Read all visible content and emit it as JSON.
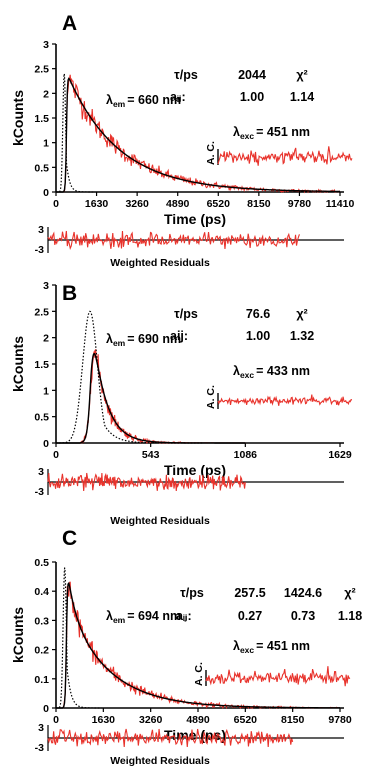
{
  "chart_data": [
    {
      "type": "line",
      "panel": "A",
      "xlabel": "Time (ps)",
      "ylabel": "kCounts",
      "xlim": [
        0,
        11410
      ],
      "ylim": [
        0,
        3
      ],
      "x_ticks": [
        "0",
        "1630",
        "3260",
        "4890",
        "6520",
        "8150",
        "9780",
        "11410"
      ],
      "y_ticks": [
        "0",
        "0.5",
        "1",
        "1.5",
        "2",
        "2.5",
        "3"
      ],
      "emission": {
        "symbol": "λ",
        "sub": "em",
        "value": "= 660 nm"
      },
      "excitation": {
        "symbol": "λ",
        "sub": "exc",
        "value": "= 451 nm"
      },
      "fit_table": {
        "headers": [
          "τ/ps",
          "2044",
          "χ²"
        ],
        "row_label": "aᵢⱼ:",
        "row_values": [
          "1.00",
          "1.14"
        ]
      },
      "ac_label": "A. C.",
      "residuals": {
        "label": "Weighted Residuals",
        "ticks": [
          "3",
          "-3"
        ],
        "data_end_x": 9780
      },
      "series": [
        {
          "kind": "IRF",
          "t0": 330,
          "peak": 2.4,
          "sigma": 55,
          "tail_tau": 120
        },
        {
          "kind": "decay",
          "t0": 420,
          "rise": 60,
          "amplitude": 2.43,
          "taus": [
            2044
          ],
          "weights": [
            1.0
          ],
          "end_x": 11410
        }
      ]
    },
    {
      "type": "line",
      "panel": "B",
      "xlabel": "Time (ps)",
      "ylabel": "kCounts",
      "xlim": [
        0,
        1629
      ],
      "ylim": [
        0,
        3
      ],
      "x_ticks": [
        "0",
        "543",
        "1086",
        "1629"
      ],
      "y_ticks": [
        "0",
        "0.5",
        "1",
        "1.5",
        "2",
        "2.5",
        "3"
      ],
      "emission": {
        "symbol": "λ",
        "sub": "em",
        "value": "= 690 nm"
      },
      "excitation": {
        "symbol": "λ",
        "sub": "exc",
        "value": "= 433 nm"
      },
      "fit_table": {
        "headers": [
          "τ/ps",
          "76.6",
          "χ²"
        ],
        "row_label": "aij:",
        "row_values": [
          "1.00",
          "1.32"
        ]
      },
      "ac_label": "A. C.",
      "residuals": {
        "label": "Weighted Residuals",
        "ticks": [
          "3",
          "-3"
        ],
        "data_end_x": 1086
      },
      "series": [
        {
          "kind": "IRF",
          "t0": 195,
          "peak": 2.5,
          "sigma": 42,
          "tail_tau": 60
        },
        {
          "kind": "decay",
          "t0": 200,
          "rise": 30,
          "amplitude": 2.5,
          "taus": [
            76.6
          ],
          "weights": [
            1.0
          ],
          "end_x": 1086
        }
      ]
    },
    {
      "type": "line",
      "panel": "C",
      "xlabel": "Time (ps)",
      "ylabel": "kCounts",
      "xlim": [
        0,
        9780
      ],
      "ylim": [
        0,
        0.5
      ],
      "x_ticks": [
        "0",
        "1630",
        "3260",
        "4890",
        "6520",
        "8150",
        "9780"
      ],
      "y_ticks": [
        "0",
        "0.1",
        "0.2",
        "0.3",
        "0.4",
        "0.5"
      ],
      "emission": {
        "symbol": "λ",
        "sub": "em",
        "value": "= 694 nm"
      },
      "excitation": {
        "symbol": "λ",
        "sub": "exc",
        "value": "= 451 nm"
      },
      "fit_table": {
        "headers": [
          "τ/ps",
          "257.5",
          "1424.6",
          "χ²"
        ],
        "row_label": "aᵢⱼ:",
        "row_values": [
          "0.27",
          "0.73",
          "1.18"
        ]
      },
      "ac_label": "A. C.",
      "residuals": {
        "label": "Weighted Residuals",
        "ticks": [
          "3",
          "-3"
        ],
        "data_end_x": 8150
      },
      "series": [
        {
          "kind": "IRF",
          "t0": 300,
          "peak": 0.48,
          "sigma": 55,
          "tail_tau": 130
        },
        {
          "kind": "decay",
          "t0": 360,
          "rise": 60,
          "amplitude": 0.49,
          "taus": [
            257.5,
            1424.6
          ],
          "weights": [
            0.27,
            0.73
          ],
          "end_x": 9780
        }
      ]
    }
  ],
  "colors": {
    "data": "#e8322b",
    "fit": "#000000",
    "irf": "#000000",
    "axis": "#000000"
  }
}
